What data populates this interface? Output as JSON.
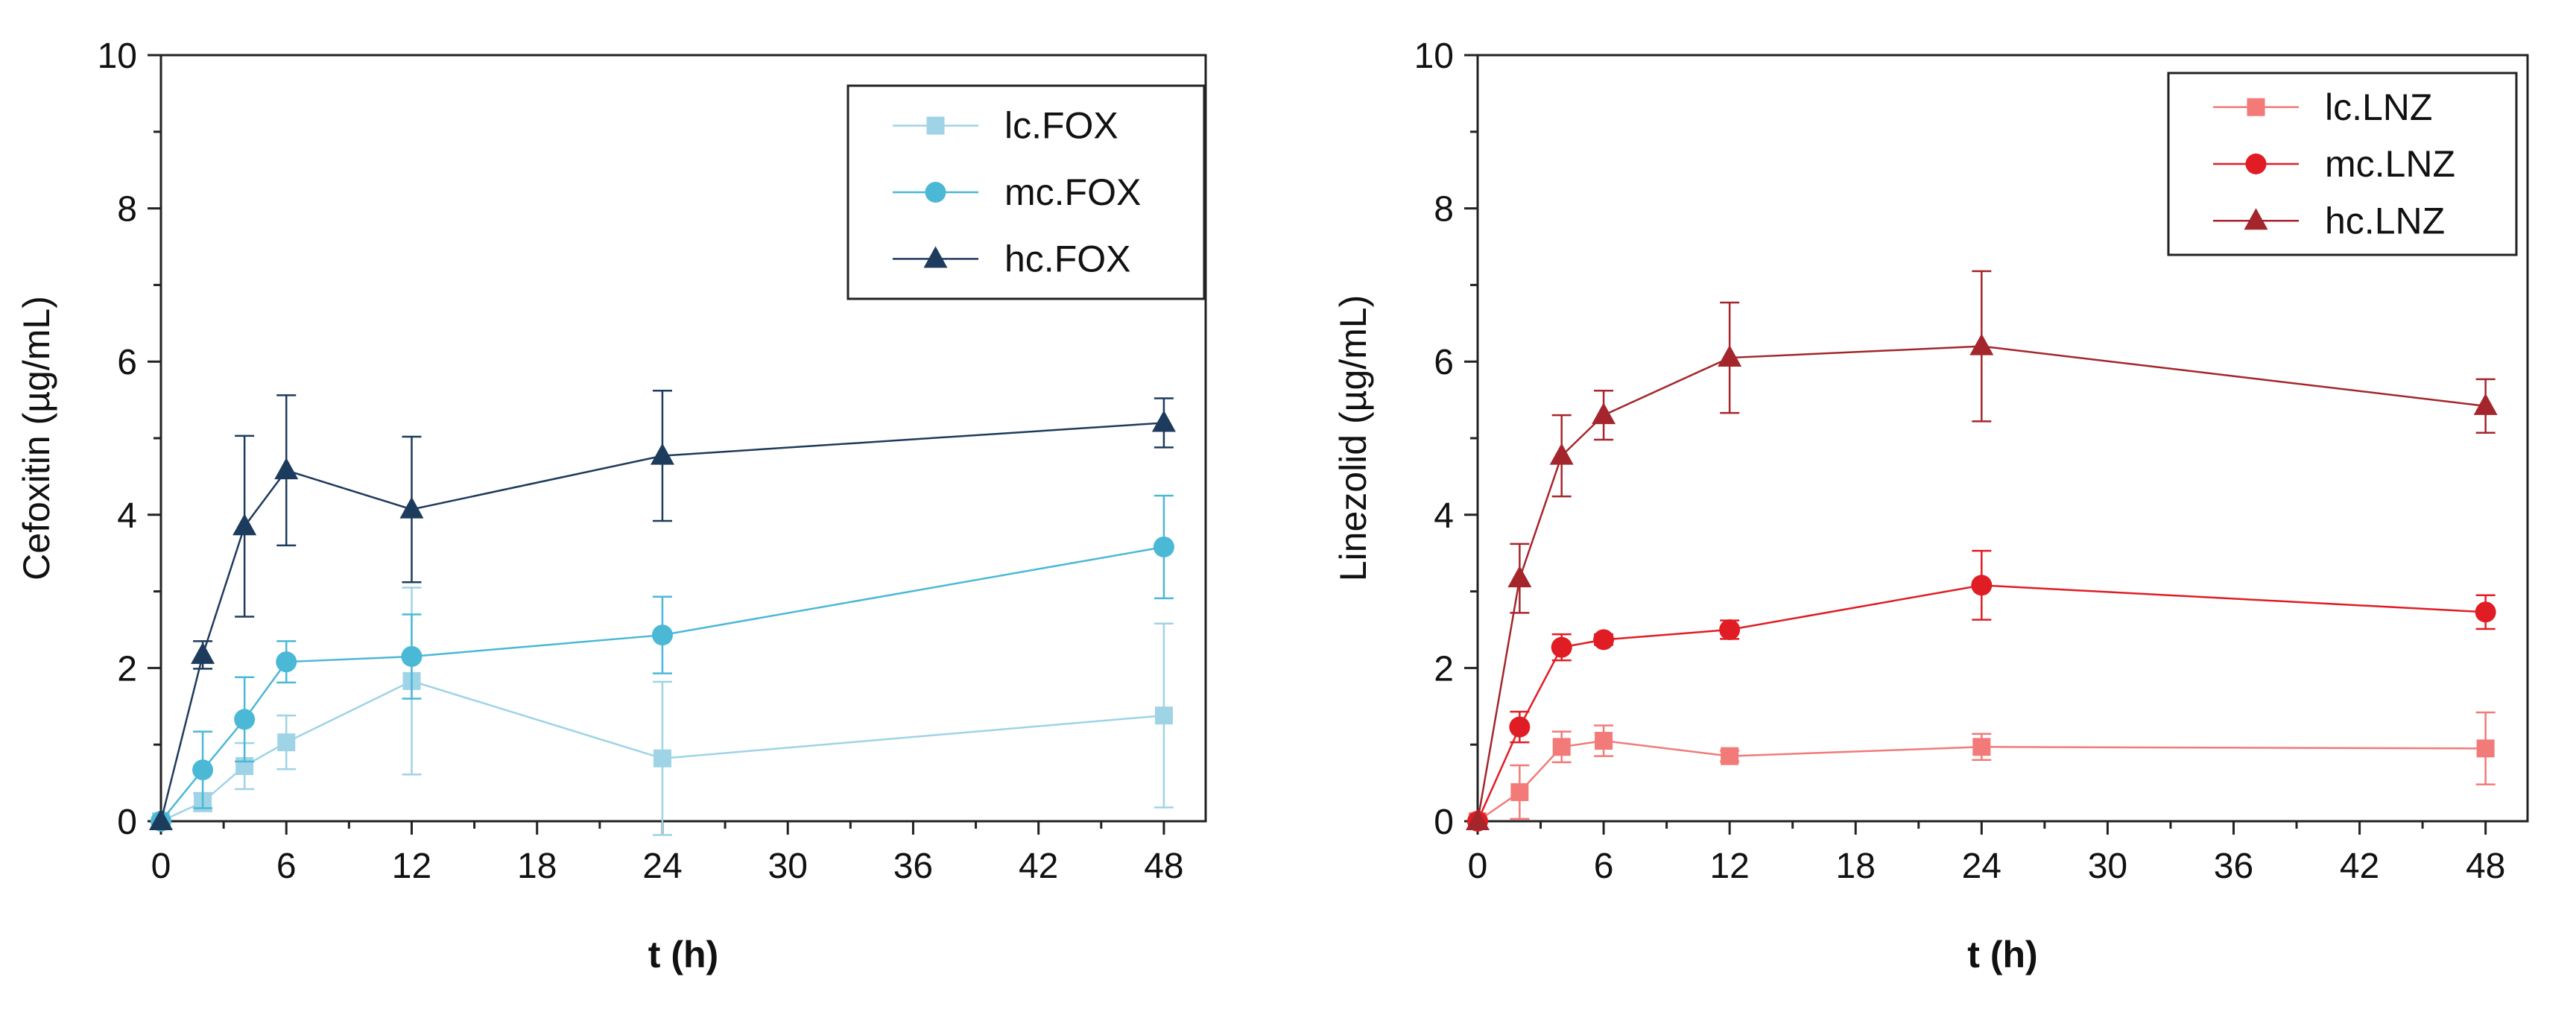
{
  "chart_data": [
    {
      "type": "line",
      "xlabel": "t (h)",
      "ylabel": "Cefoxitin (µg/mL)",
      "xlim": [
        0,
        50
      ],
      "ylim": [
        0,
        10
      ],
      "x_ticks": [
        0,
        6,
        12,
        18,
        24,
        30,
        36,
        42,
        48
      ],
      "y_ticks": [
        0,
        2,
        4,
        6,
        8,
        10
      ],
      "legend_position": "top-right",
      "series": [
        {
          "name": "lc.FOX",
          "marker": "square",
          "color": "#9fd3e6",
          "x": [
            0,
            2,
            4,
            6,
            12,
            24,
            48
          ],
          "values": [
            0,
            0.25,
            0.72,
            1.03,
            1.83,
            0.82,
            1.38
          ],
          "errors": [
            0.05,
            0.12,
            0.3,
            0.35,
            1.22,
            1.0,
            1.2
          ]
        },
        {
          "name": "mc.FOX",
          "marker": "circle",
          "color": "#4bb8d6",
          "x": [
            0,
            2,
            4,
            6,
            12,
            24,
            48
          ],
          "values": [
            0,
            0.67,
            1.33,
            2.08,
            2.15,
            2.43,
            3.58
          ],
          "errors": [
            0.05,
            0.5,
            0.55,
            0.27,
            0.55,
            0.5,
            0.67
          ]
        },
        {
          "name": "hc.FOX",
          "marker": "triangle",
          "color": "#1d3b5c",
          "x": [
            0,
            2,
            4,
            6,
            12,
            24,
            48
          ],
          "values": [
            0,
            2.17,
            3.85,
            4.58,
            4.07,
            4.77,
            5.2
          ],
          "errors": [
            0.05,
            0.18,
            1.18,
            0.98,
            0.95,
            0.85,
            0.32
          ]
        }
      ]
    },
    {
      "type": "line",
      "xlabel": "t (h)",
      "ylabel": "Linezolid (µg/mL)",
      "xlim": [
        0,
        50
      ],
      "ylim": [
        0,
        10
      ],
      "x_ticks": [
        0,
        6,
        12,
        18,
        24,
        30,
        36,
        42,
        48
      ],
      "y_ticks": [
        0,
        2,
        4,
        6,
        8,
        10
      ],
      "legend_position": "top-right",
      "series": [
        {
          "name": "lc.LNZ",
          "marker": "square",
          "color": "#f27a78",
          "x": [
            0,
            2,
            4,
            6,
            12,
            24,
            48
          ],
          "values": [
            0,
            0.38,
            0.97,
            1.05,
            0.85,
            0.97,
            0.95
          ],
          "errors": [
            0.05,
            0.35,
            0.2,
            0.2,
            0.07,
            0.17,
            0.47
          ]
        },
        {
          "name": "mc.LNZ",
          "marker": "circle",
          "color": "#e01d24",
          "x": [
            0,
            2,
            4,
            6,
            12,
            24,
            48
          ],
          "values": [
            0,
            1.23,
            2.27,
            2.37,
            2.5,
            3.08,
            2.73
          ],
          "errors": [
            0.05,
            0.2,
            0.17,
            0.07,
            0.12,
            0.45,
            0.22
          ]
        },
        {
          "name": "hc.LNZ",
          "marker": "triangle",
          "color": "#a4262c",
          "x": [
            0,
            2,
            4,
            6,
            12,
            24,
            48
          ],
          "values": [
            0,
            3.17,
            4.77,
            5.3,
            6.05,
            6.2,
            5.42
          ],
          "errors": [
            0.05,
            0.45,
            0.53,
            0.32,
            0.72,
            0.98,
            0.35
          ]
        }
      ]
    }
  ]
}
